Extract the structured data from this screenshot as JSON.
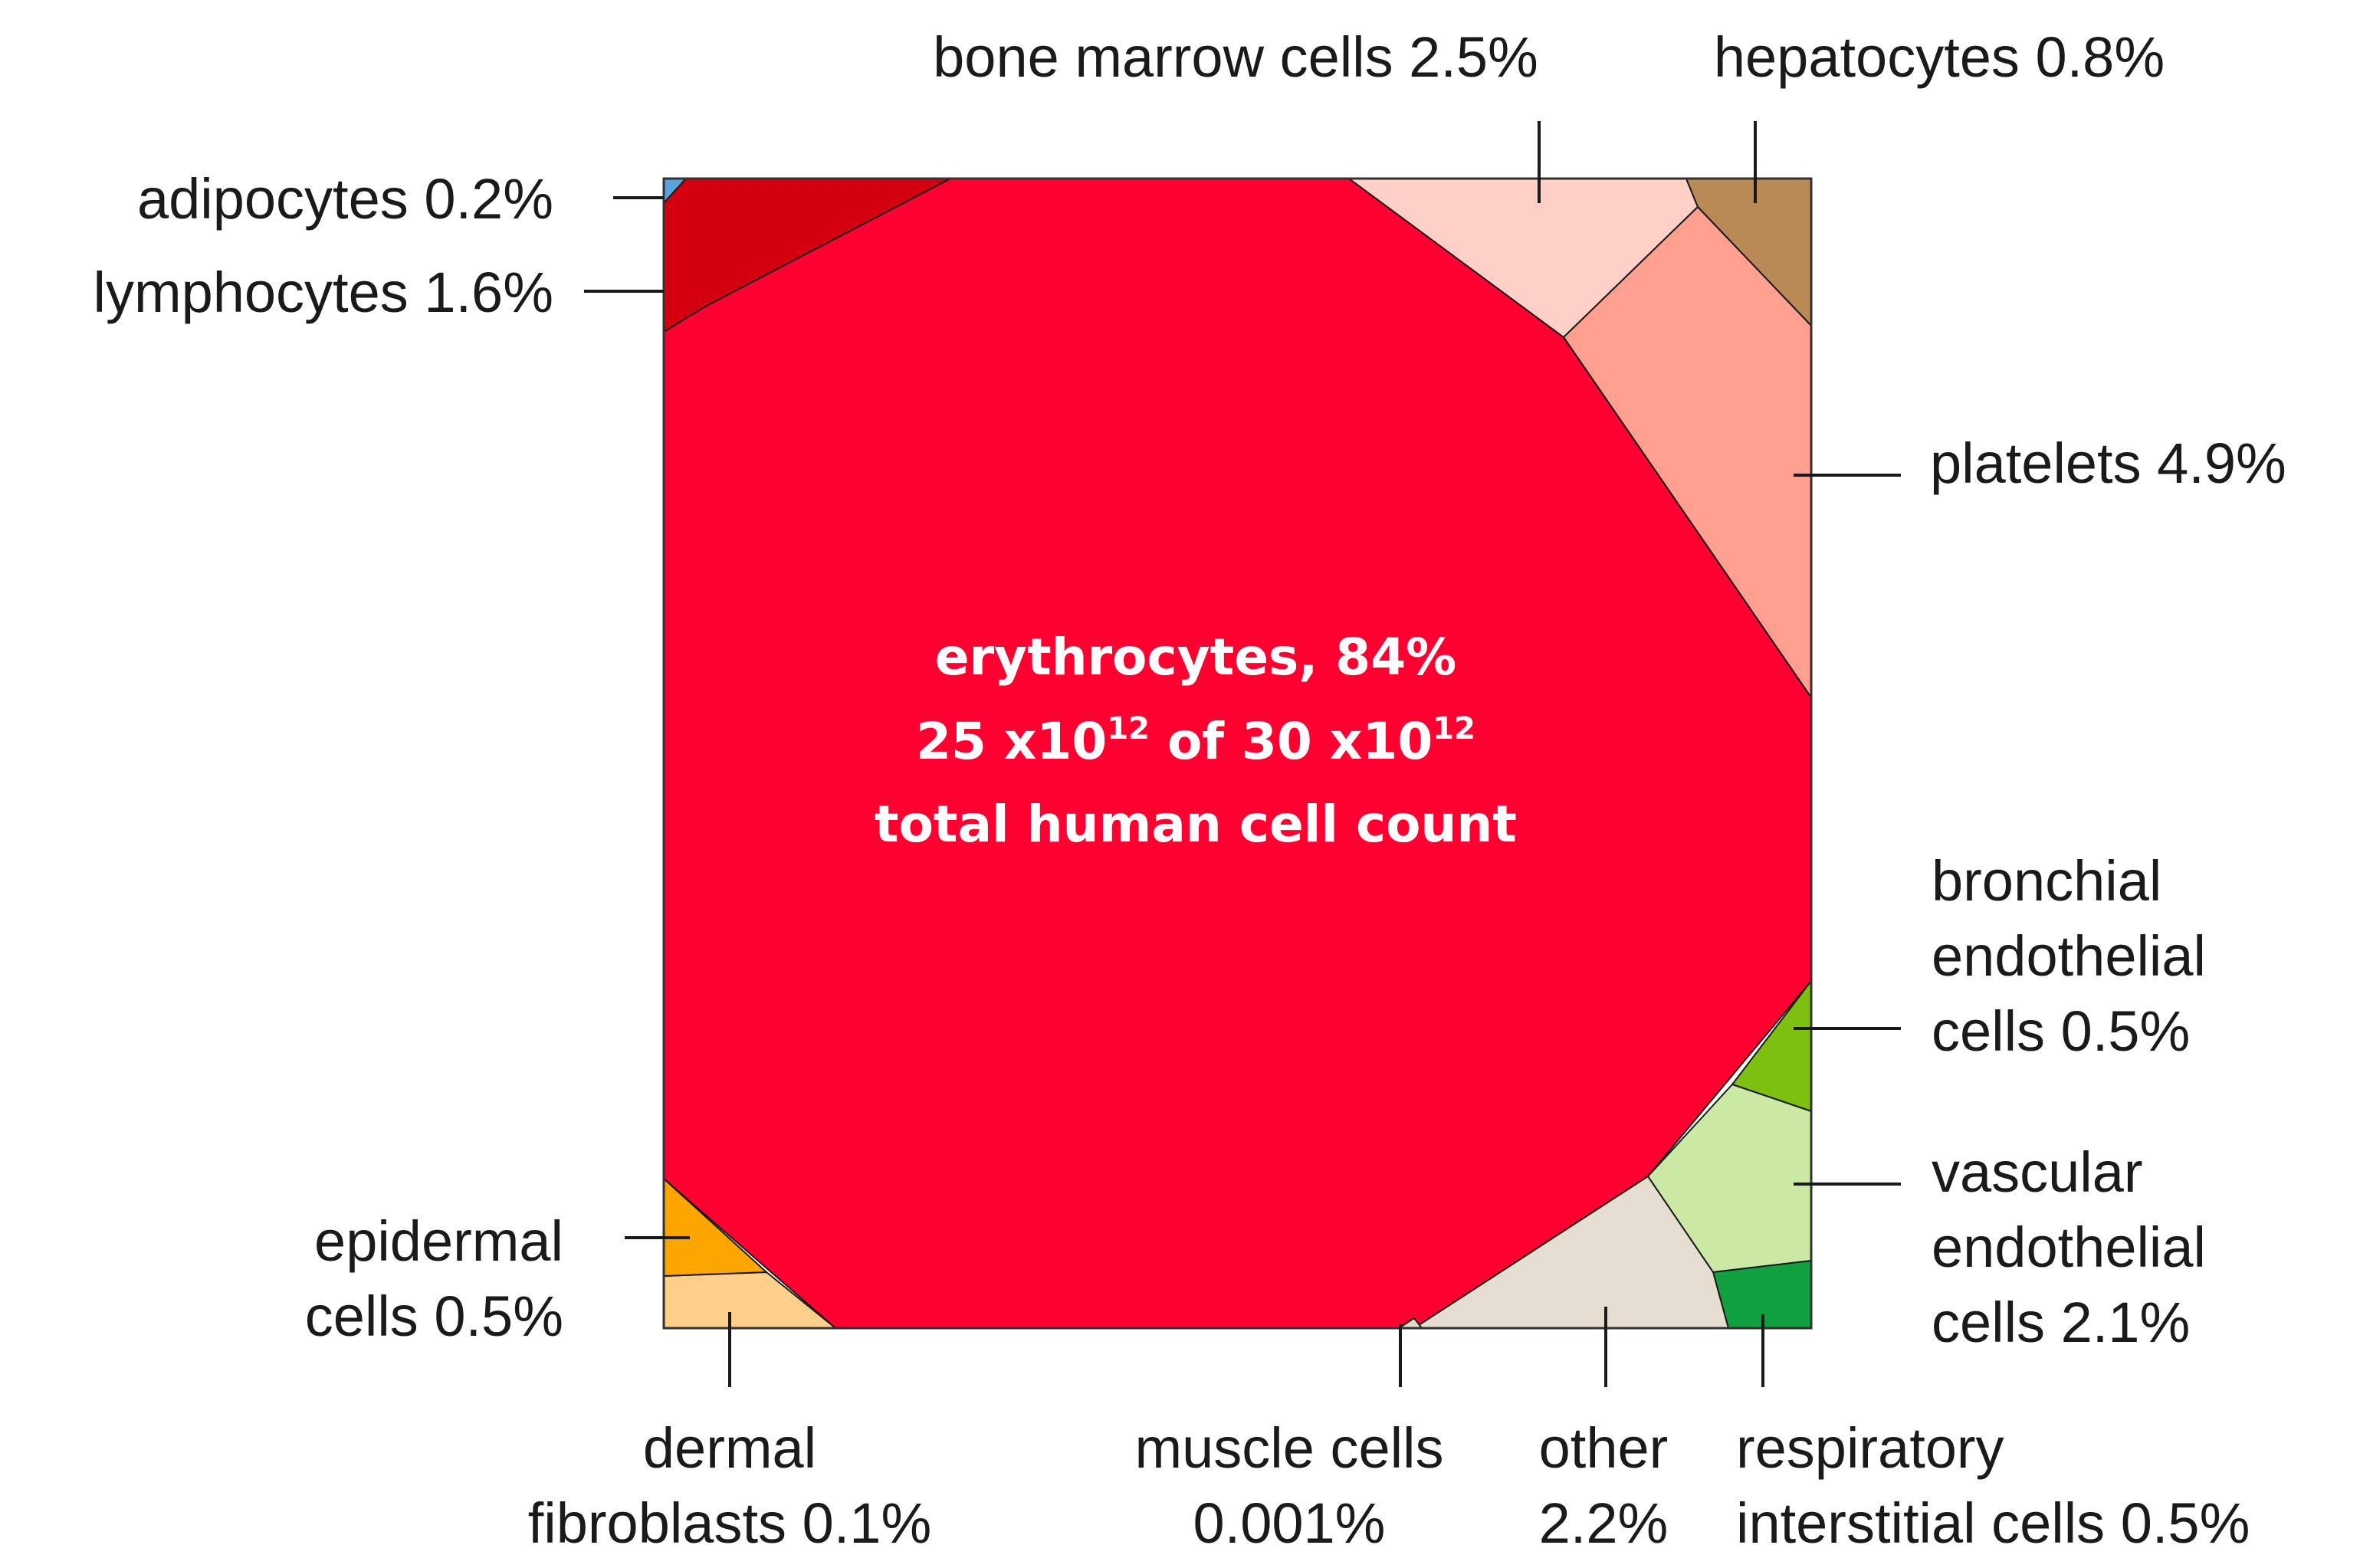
{
  "chart_data": {
    "type": "voronoi-treemap",
    "subtitle": "total human cell count",
    "total": {
      "value": "30 x10",
      "exponent": "12"
    },
    "erythrocyte_count": {
      "value": "25 x10",
      "exponent": "12"
    },
    "cells": [
      {
        "id": "erythrocytes",
        "name": "erythrocytes",
        "percent": 84,
        "label": "erythrocytes, 84%",
        "color": "#FF0030"
      },
      {
        "id": "adipocytes",
        "name": "adipocytes",
        "percent": 0.2,
        "label": [
          "adipocytes 0.2%"
        ],
        "color": "#5BA3DE"
      },
      {
        "id": "lymphocytes",
        "name": "lymphocytes",
        "percent": 1.6,
        "label": [
          "lymphocytes 1.6%"
        ],
        "color": "#D40010"
      },
      {
        "id": "bone-marrow",
        "name": "bone marrow cells",
        "percent": 2.5,
        "label": [
          "bone marrow cells 2.5%"
        ],
        "color": "#FFD0C8"
      },
      {
        "id": "hepatocytes",
        "name": "hepatocytes",
        "percent": 0.8,
        "label": [
          "hepatocytes 0.8%"
        ],
        "color": "#B98A55"
      },
      {
        "id": "platelets",
        "name": "platelets",
        "percent": 4.9,
        "label": [
          "platelets 4.9%"
        ],
        "color": "#FF9F90"
      },
      {
        "id": "bronchial",
        "name": "bronchial endothelial cells",
        "percent": 0.5,
        "label": [
          "bronchial",
          "endothelial",
          "cells 0.5%"
        ],
        "color": "#7DC010"
      },
      {
        "id": "vascular",
        "name": "vascular endothelial cells",
        "percent": 2.1,
        "label": [
          "vascular",
          "endothelial",
          "cells 2.1%"
        ],
        "color": "#CCE8A5"
      },
      {
        "id": "respiratory",
        "name": "respiratory interstitial cells",
        "percent": 0.5,
        "label": [
          "respiratory",
          "interstitial cells 0.5%"
        ],
        "color": "#10A040"
      },
      {
        "id": "other",
        "name": "other",
        "percent": 2.2,
        "label": [
          "other",
          "2.2%"
        ],
        "color": "#E5DDD0"
      },
      {
        "id": "muscle",
        "name": "muscle cells",
        "percent": 0.001,
        "label": [
          "muscle cells",
          "0.001%"
        ],
        "color": "#E0D8C8"
      },
      {
        "id": "dermal",
        "name": "dermal fibroblasts",
        "percent": 0.1,
        "label": [
          "dermal",
          "fibroblasts 0.1%"
        ],
        "color": "#FFCF8A"
      },
      {
        "id": "epidermal",
        "name": "epidermal cells",
        "percent": 0.5,
        "label": [
          "epidermal",
          "cells 0.5%"
        ],
        "color": "#FFA500"
      }
    ]
  }
}
